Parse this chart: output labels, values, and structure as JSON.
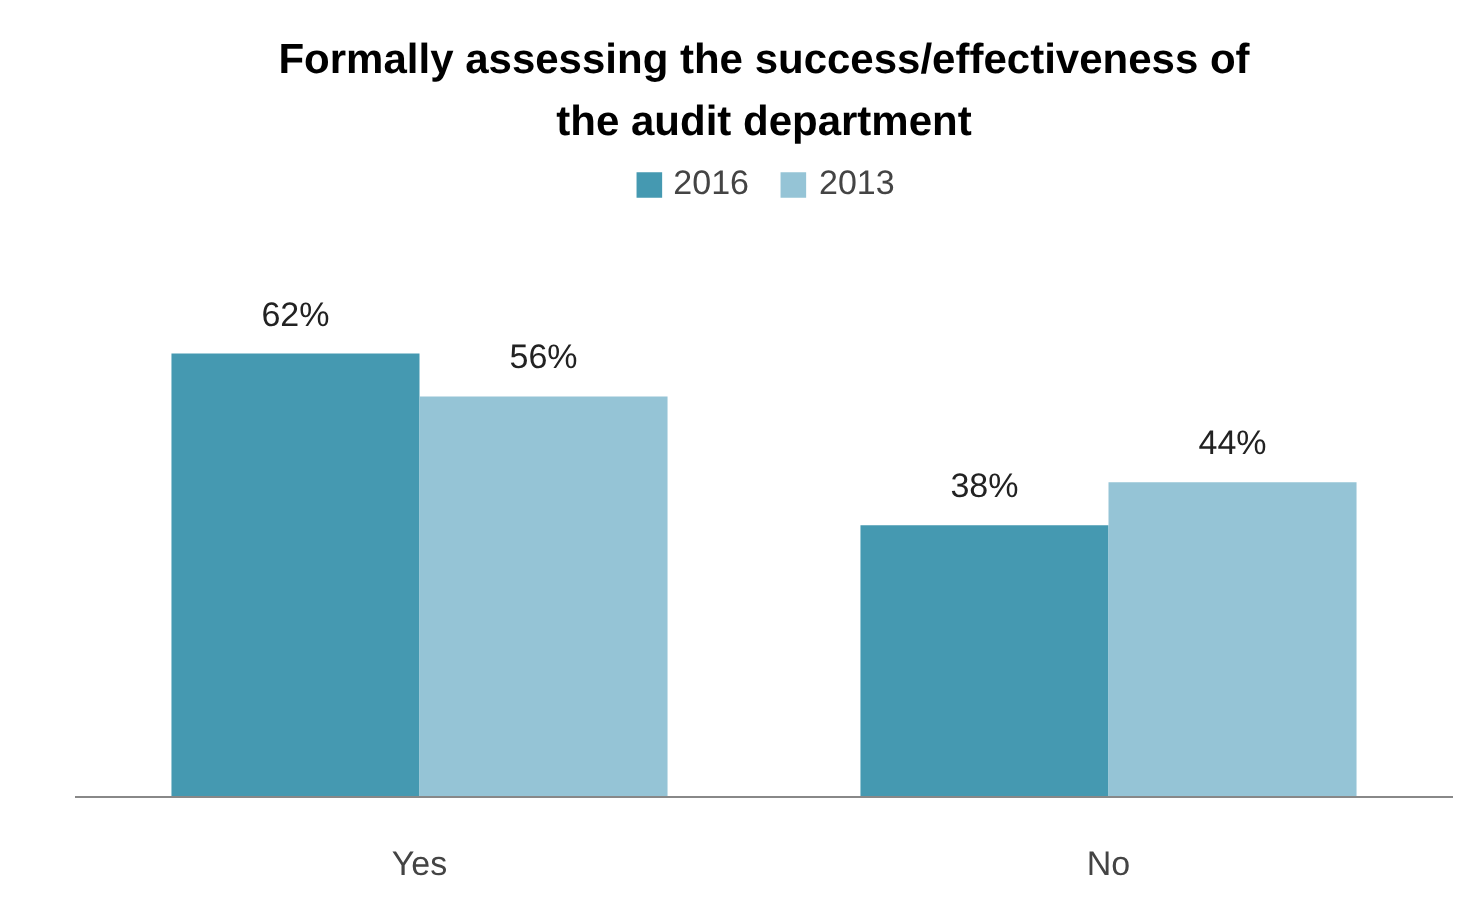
{
  "chart_data": {
    "type": "bar",
    "title": "Formally assessing the success/effectiveness of the audit department",
    "categories": [
      "Yes",
      "No"
    ],
    "series": [
      {
        "name": "2016",
        "color": "#4599b1",
        "values": [
          62,
          38
        ],
        "value_labels": [
          "62%",
          "38%"
        ]
      },
      {
        "name": "2013",
        "color": "#95c4d6",
        "values": [
          56,
          44
        ],
        "value_labels": [
          "56%",
          "44%"
        ]
      }
    ],
    "legend": "top",
    "grid": false
  }
}
